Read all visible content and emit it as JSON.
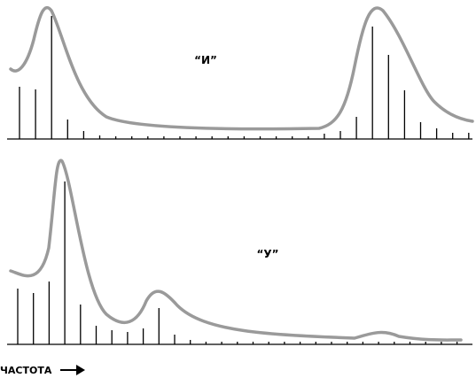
{
  "panels": [
    {
      "label": "“И”"
    },
    {
      "label": "“У”"
    }
  ],
  "x_axis": {
    "label": "ЧАСТОТА"
  }
}
